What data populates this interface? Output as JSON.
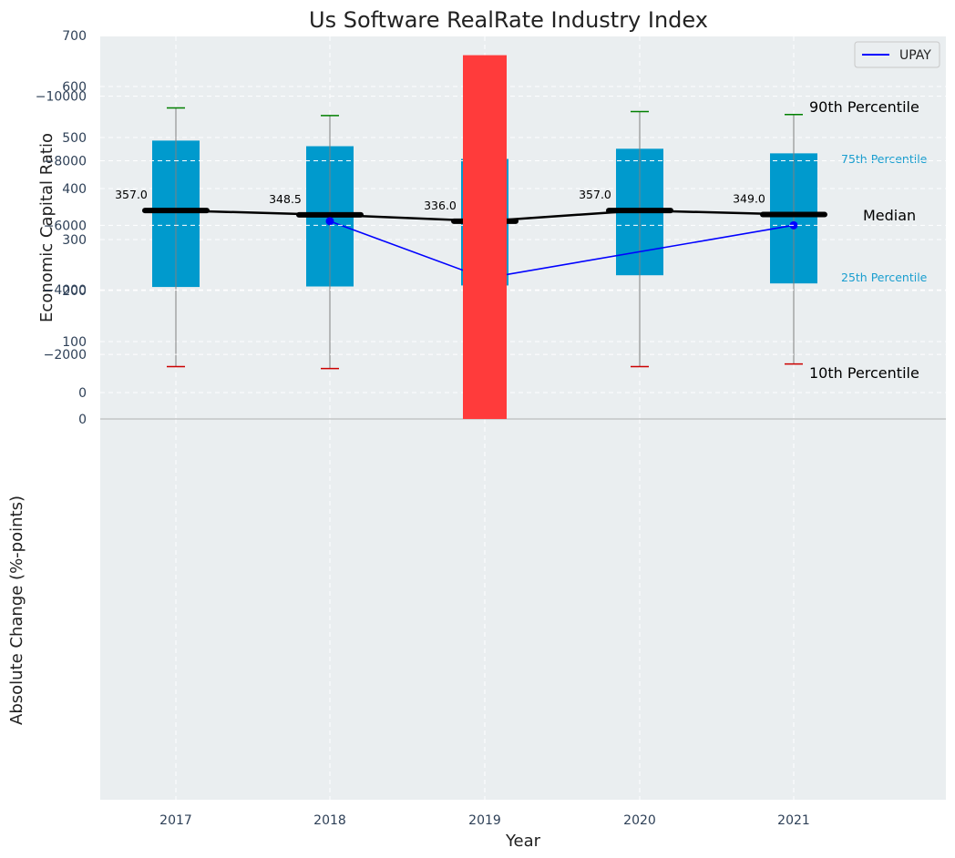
{
  "title": "Us Software RealRate Industry Index",
  "chart_data": [
    {
      "type": "box",
      "years": [
        "2017",
        "2018",
        "2019",
        "2020",
        "2021"
      ],
      "p10": [
        51,
        47,
        52,
        51,
        56
      ],
      "p25": [
        207,
        208,
        210,
        230,
        214
      ],
      "median": [
        357.0,
        348.5,
        336.0,
        357.0,
        349.0
      ],
      "median_labels": [
        "357.0",
        "348.5",
        "336.0",
        "357.0",
        "349.0"
      ],
      "p75": [
        494,
        483,
        458,
        478,
        469
      ],
      "p90": [
        558,
        543,
        559,
        551,
        545
      ],
      "series": [
        {
          "name": "UPAY",
          "x": [
            "2018",
            "2019",
            "2021"
          ],
          "values": [
            336,
            224,
            328
          ],
          "color": "#0000ff"
        }
      ],
      "ylabel": "Economic Capital Ratio",
      "ylim": [
        0,
        700
      ],
      "yticks": [
        "0",
        "100",
        "200",
        "300",
        "400",
        "500",
        "600",
        "700"
      ],
      "annotations": {
        "p90": "90th Percentile",
        "p75": "75th Percentile",
        "median": "Median",
        "p25": "25th Percentile",
        "p10": "10th Percentile"
      },
      "legend": {
        "position": "top-right",
        "entries": [
          "UPAY"
        ]
      },
      "grid": true,
      "colors": {
        "box": "#009acd",
        "median": "#000000",
        "p90_cap": "#008000",
        "p10_cap": "#cc0000",
        "whisker": "#808080"
      }
    },
    {
      "type": "bar",
      "categories": [
        "2017",
        "2018",
        "2019",
        "2020",
        "2021"
      ],
      "values": [
        null,
        null,
        -11270,
        null,
        null
      ],
      "ylabel": "Absolute Change (%-points)",
      "xlabel": "Year",
      "yticks": [
        "0",
        "−2000",
        "−4000",
        "−6000",
        "−8000",
        "−10000"
      ],
      "ylim": [
        -11800,
        0
      ],
      "grid": true,
      "colors": {
        "negative": "#ff3b3b"
      }
    }
  ]
}
